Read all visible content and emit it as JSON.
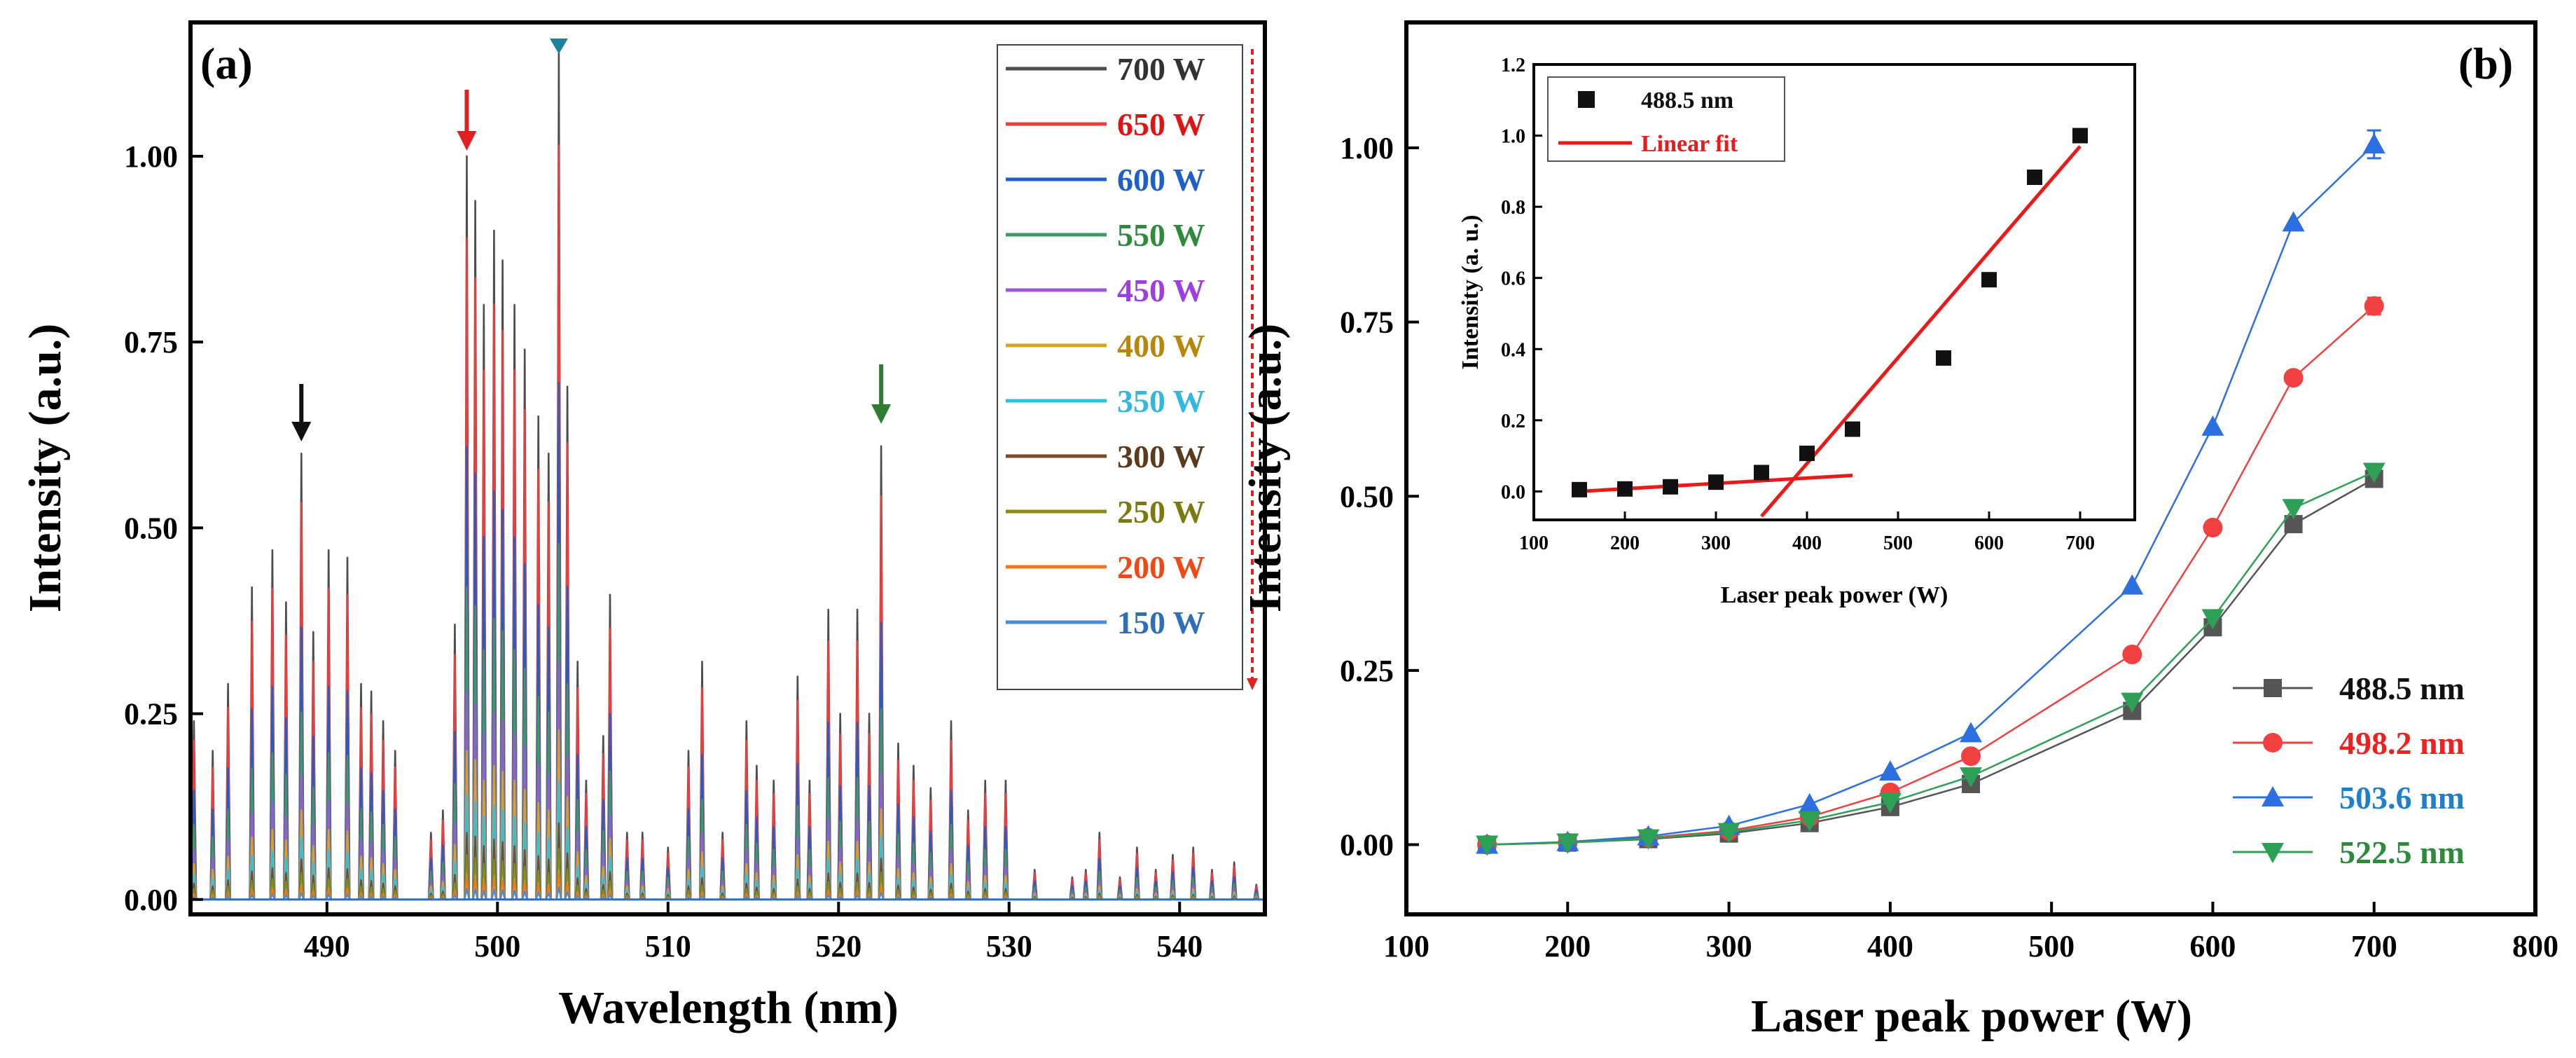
{
  "chart_data": [
    {
      "panel_label": "(a)",
      "type": "line",
      "xlabel": "Wavelength (nm)",
      "ylabel": "Intensity (a.u.)",
      "xlim": [
        482,
        545
      ],
      "ylim": [
        -0.02,
        1.18
      ],
      "xticks": [
        490,
        500,
        510,
        520,
        530,
        540
      ],
      "yticks": [
        0.0,
        0.25,
        0.5,
        0.75,
        1.0
      ],
      "ytick_labels": [
        "0.00",
        "0.25",
        "0.50",
        "0.75",
        "1.00"
      ],
      "legend_position": "top-right",
      "peaks_700W": [
        [
          482.2,
          0.24
        ],
        [
          483.3,
          0.2
        ],
        [
          484.2,
          0.29
        ],
        [
          485.6,
          0.42
        ],
        [
          486.8,
          0.47
        ],
        [
          487.6,
          0.4
        ],
        [
          488.5,
          0.6
        ],
        [
          489.2,
          0.36
        ],
        [
          490.1,
          0.47
        ],
        [
          491.2,
          0.46
        ],
        [
          492.0,
          0.29
        ],
        [
          492.6,
          0.28
        ],
        [
          493.3,
          0.24
        ],
        [
          494.0,
          0.2
        ],
        [
          496.1,
          0.09
        ],
        [
          496.8,
          0.12
        ],
        [
          497.5,
          0.37
        ],
        [
          498.2,
          1.0
        ],
        [
          498.7,
          0.94
        ],
        [
          499.2,
          0.8
        ],
        [
          499.8,
          0.9
        ],
        [
          500.3,
          0.86
        ],
        [
          501.0,
          0.8
        ],
        [
          501.6,
          0.74
        ],
        [
          502.4,
          0.65
        ],
        [
          503.0,
          0.6
        ],
        [
          503.6,
          1.14
        ],
        [
          504.1,
          0.69
        ],
        [
          504.7,
          0.32
        ],
        [
          505.2,
          0.16
        ],
        [
          506.2,
          0.22
        ],
        [
          506.6,
          0.41
        ],
        [
          507.6,
          0.09
        ],
        [
          508.5,
          0.09
        ],
        [
          510.0,
          0.07
        ],
        [
          511.2,
          0.2
        ],
        [
          512.0,
          0.32
        ],
        [
          513.2,
          0.09
        ],
        [
          514.6,
          0.24
        ],
        [
          515.2,
          0.18
        ],
        [
          516.2,
          0.16
        ],
        [
          517.6,
          0.3
        ],
        [
          518.3,
          0.16
        ],
        [
          519.4,
          0.39
        ],
        [
          520.1,
          0.25
        ],
        [
          521.1,
          0.39
        ],
        [
          521.8,
          0.25
        ],
        [
          522.5,
          0.61
        ],
        [
          523.5,
          0.21
        ],
        [
          524.4,
          0.18
        ],
        [
          525.4,
          0.15
        ],
        [
          526.6,
          0.24
        ],
        [
          527.6,
          0.12
        ],
        [
          528.6,
          0.16
        ],
        [
          529.8,
          0.16
        ],
        [
          531.5,
          0.04
        ],
        [
          533.7,
          0.03
        ],
        [
          534.5,
          0.04
        ],
        [
          535.3,
          0.09
        ],
        [
          536.5,
          0.03
        ],
        [
          537.5,
          0.07
        ],
        [
          538.6,
          0.04
        ],
        [
          539.6,
          0.06
        ],
        [
          540.8,
          0.07
        ],
        [
          541.9,
          0.04
        ],
        [
          543.2,
          0.05
        ],
        [
          544.5,
          0.02
        ]
      ],
      "series": [
        {
          "name": "700 W",
          "color": "#4d4d4d",
          "scale": 1.0
        },
        {
          "name": "650 W",
          "color": "#f03c3c",
          "scale": 0.89
        },
        {
          "name": "600 W",
          "color": "#1f5fc8",
          "scale": 0.61
        },
        {
          "name": "550 W",
          "color": "#3a9a68",
          "scale": 0.42
        },
        {
          "name": "450 W",
          "color": "#9b59d9",
          "scale": 0.28
        },
        {
          "name": "400 W",
          "color": "#d8a420",
          "scale": 0.2
        },
        {
          "name": "350 W",
          "color": "#2ec4d8",
          "scale": 0.14
        },
        {
          "name": "300 W",
          "color": "#7a4a2a",
          "scale": 0.09
        },
        {
          "name": "250 W",
          "color": "#8a8a14",
          "scale": 0.06
        },
        {
          "name": "200 W",
          "color": "#f07820",
          "scale": 0.03
        },
        {
          "name": "150 W",
          "color": "#4a8ad8",
          "scale": 0.015
        }
      ],
      "legend_colors": [
        "#333333",
        "#e01414",
        "#1f5fc8",
        "#2e8a3c",
        "#9b3fe0",
        "#b8860b",
        "#33b7e0",
        "#5c3a1e",
        "#7a7a10",
        "#f04a14",
        "#2f6fb8"
      ],
      "annotations": [
        {
          "type": "arrow",
          "x": 488.5,
          "color": "#111111"
        },
        {
          "type": "arrow",
          "x": 498.2,
          "color": "#e02020"
        },
        {
          "type": "arrow",
          "x": 503.6,
          "color": "#1f7fa0"
        },
        {
          "type": "arrow",
          "x": 522.5,
          "color": "#2e7d32"
        }
      ]
    },
    {
      "panel_label": "(b)",
      "type": "line",
      "xlabel": "Laser peak power (W)",
      "ylabel": "Intensity (a.u.)",
      "xlim": [
        100,
        800
      ],
      "ylim": [
        -0.1,
        1.18
      ],
      "xticks": [
        100,
        200,
        300,
        400,
        500,
        600,
        700,
        800
      ],
      "yticks": [
        0.0,
        0.25,
        0.5,
        0.75,
        1.0
      ],
      "ytick_labels": [
        "0.00",
        "0.25",
        "0.50",
        "0.75",
        "1.00"
      ],
      "x": [
        150,
        200,
        250,
        300,
        350,
        400,
        450,
        550,
        600,
        650,
        700
      ],
      "legend_position": "bottom-right",
      "series": [
        {
          "name": "488.5 nm",
          "color": "#555555",
          "text_color": "#111111",
          "marker": "square",
          "values": [
            0.0,
            0.003,
            0.008,
            0.016,
            0.031,
            0.054,
            0.087,
            0.192,
            0.312,
            0.46,
            0.525
          ]
        },
        {
          "name": "498.2 nm",
          "color": "#f04040",
          "text_color": "#f02020",
          "marker": "circle",
          "values": [
            0.0,
            0.003,
            0.01,
            0.02,
            0.04,
            0.075,
            0.127,
            0.273,
            0.455,
            0.67,
            0.773
          ]
        },
        {
          "name": "503.6 nm",
          "color": "#2b6fe0",
          "text_color": "#1f7fc8",
          "marker": "triangle-up",
          "values": [
            0.0,
            0.004,
            0.012,
            0.027,
            0.058,
            0.105,
            0.16,
            0.372,
            0.6,
            0.893,
            1.005
          ]
        },
        {
          "name": "522.5 nm",
          "color": "#2ea055",
          "text_color": "#2e8a3c",
          "marker": "triangle-down",
          "values": [
            0.0,
            0.003,
            0.009,
            0.018,
            0.035,
            0.061,
            0.098,
            0.205,
            0.325,
            0.483,
            0.535
          ]
        }
      ],
      "errorbars": {
        "503.6 nm": [
          0,
          0,
          0,
          0,
          0,
          0,
          0,
          0,
          0,
          0,
          0.02
        ],
        "498.2 nm": [
          0,
          0,
          0,
          0,
          0,
          0,
          0,
          0,
          0,
          0,
          0.012
        ]
      },
      "inset": {
        "xlabel": "Laser peak power (W)",
        "ylabel": "Intensity (a. u.)",
        "xlim": [
          100,
          760
        ],
        "ylim": [
          -0.08,
          1.2
        ],
        "xticks": [
          100,
          200,
          300,
          400,
          500,
          600,
          700
        ],
        "yticks": [
          0.0,
          0.2,
          0.4,
          0.6,
          0.8,
          1.0,
          1.2
        ],
        "ytick_labels": [
          "0.0",
          "0.2",
          "0.4",
          "0.6",
          "0.8",
          "1.0",
          "1.2"
        ],
        "points_label": "488.5 nm",
        "fit_label": "Linear fit",
        "x": [
          150,
          200,
          250,
          300,
          350,
          400,
          450,
          550,
          600,
          650,
          700
        ],
        "values": [
          0.005,
          0.007,
          0.013,
          0.026,
          0.053,
          0.107,
          0.175,
          0.375,
          0.595,
          0.883,
          1.0
        ],
        "fit_low": {
          "x": [
            150,
            450
          ],
          "y": [
            0.0,
            0.045
          ]
        },
        "fit_high": {
          "x": [
            350,
            700
          ],
          "y": [
            -0.07,
            0.97
          ]
        },
        "fit_color": "#e81a1a",
        "point_color": "#111111"
      }
    }
  ]
}
